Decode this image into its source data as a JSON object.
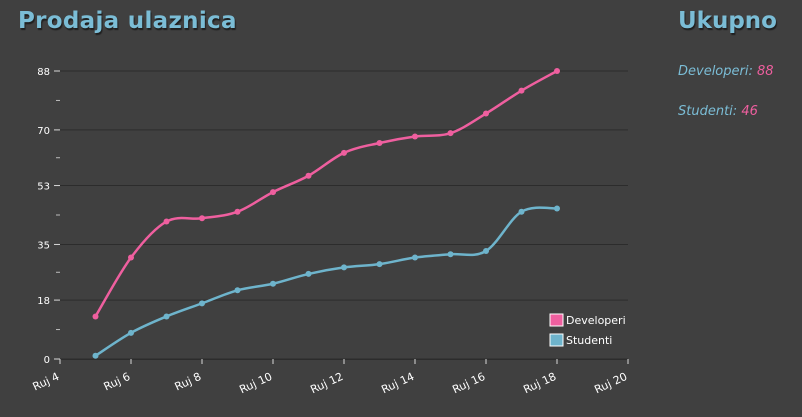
{
  "header": {
    "title": "Prodaja ulaznica"
  },
  "totals": {
    "title": "Ukupno",
    "items": [
      {
        "label": "Developeri:",
        "value": "88"
      },
      {
        "label": "Studenti:",
        "value": "46"
      }
    ]
  },
  "chart_data": {
    "type": "line",
    "x_unit": "day of September (Ruj)",
    "xlim": [
      4,
      20
    ],
    "x_ticks": [
      4,
      6,
      8,
      10,
      12,
      14,
      16,
      18,
      20
    ],
    "x_tick_labels": [
      "Ruj 4",
      "Ruj 6",
      "Ruj 8",
      "Ruj 10",
      "Ruj 12",
      "Ruj 14",
      "Ruj 16",
      "Ruj 18",
      "Ruj 20"
    ],
    "ylim": [
      0,
      88
    ],
    "y_ticks": [
      0,
      18,
      35,
      53,
      70,
      88
    ],
    "grid": true,
    "legend_position": "bottom-right",
    "series": [
      {
        "name": "Developeri",
        "color": "#ef5f9f",
        "x": [
          5,
          6,
          7,
          8,
          9,
          10,
          11,
          12,
          13,
          14,
          15,
          16,
          17,
          18
        ],
        "values": [
          13,
          31,
          42,
          43,
          45,
          51,
          56,
          63,
          66,
          68,
          69,
          75,
          82,
          88
        ]
      },
      {
        "name": "Studenti",
        "color": "#6eb4cc",
        "x": [
          5,
          6,
          7,
          8,
          9,
          10,
          11,
          12,
          13,
          14,
          15,
          16,
          17,
          18
        ],
        "values": [
          1,
          8,
          13,
          17,
          21,
          23,
          26,
          28,
          29,
          31,
          32,
          33,
          45,
          46
        ]
      }
    ]
  }
}
